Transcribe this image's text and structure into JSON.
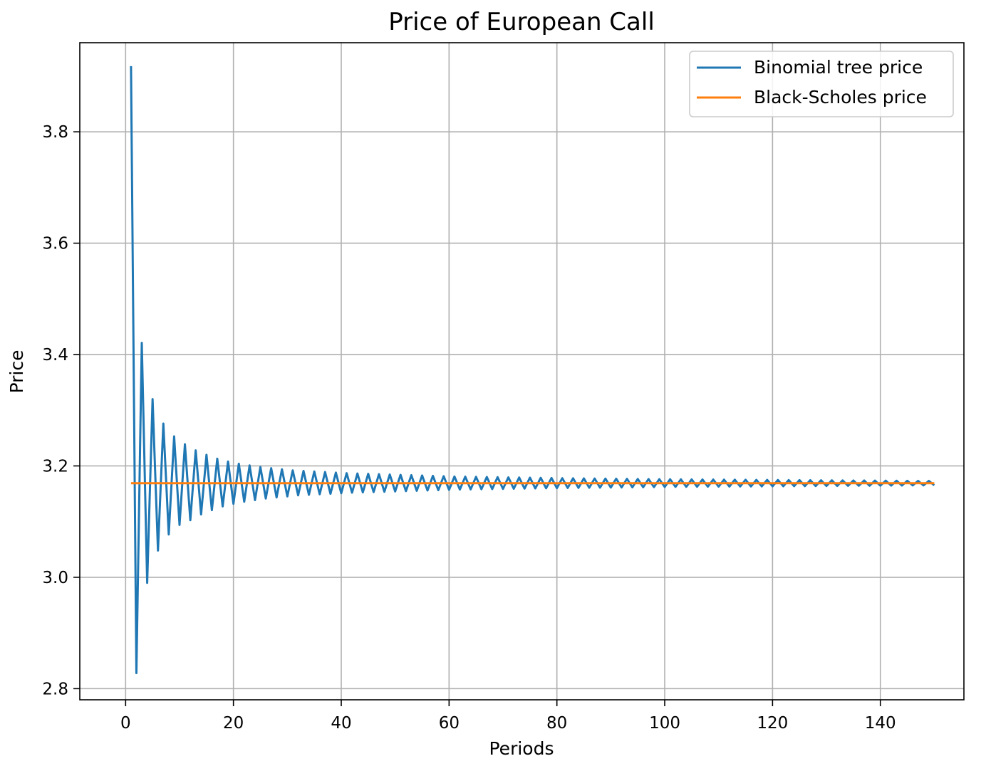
{
  "chart_data": {
    "type": "line",
    "title": "Price of European Call",
    "xlabel": "Periods",
    "ylabel": "Price",
    "xlim": [
      -8.5,
      155.5
    ],
    "ylim": [
      2.78,
      3.96
    ],
    "xticks": [
      0,
      20,
      40,
      60,
      80,
      100,
      120,
      140
    ],
    "xtick_labels": [
      "0",
      "20",
      "40",
      "60",
      "80",
      "100",
      "120",
      "140"
    ],
    "yticks": [
      2.8,
      3.0,
      3.2,
      3.4,
      3.6,
      3.8
    ],
    "ytick_labels": [
      "2.8",
      "3.0",
      "3.2",
      "3.4",
      "3.6",
      "3.8"
    ],
    "grid": true,
    "legend_position": "top-right",
    "series": [
      {
        "name": "Binomial tree price",
        "color": "#1f77b4",
        "style": "oscillating",
        "x_start": 1,
        "x_end": 150,
        "converges_to": 3.169,
        "anchor_points": [
          [
            1,
            3.918
          ],
          [
            2,
            2.828
          ],
          [
            3,
            3.421
          ],
          [
            4,
            2.99
          ],
          [
            5,
            3.32
          ],
          [
            6,
            3.048
          ],
          [
            7,
            3.276
          ],
          [
            8,
            3.077
          ],
          [
            9,
            3.253
          ],
          [
            10,
            3.094
          ],
          [
            11,
            3.239
          ],
          [
            13,
            3.228
          ],
          [
            15,
            3.22
          ],
          [
            17,
            3.213
          ],
          [
            19,
            3.208
          ],
          [
            21,
            3.204
          ],
          [
            25,
            3.198
          ],
          [
            31,
            3.192
          ],
          [
            41,
            3.187
          ],
          [
            61,
            3.181
          ],
          [
            81,
            3.178
          ],
          [
            101,
            3.176
          ],
          [
            149,
            3.173
          ]
        ]
      },
      {
        "name": "Black-Scholes price",
        "color": "#ff7f0e",
        "x": [
          1,
          150
        ],
        "y": [
          3.169,
          3.169
        ]
      }
    ]
  }
}
